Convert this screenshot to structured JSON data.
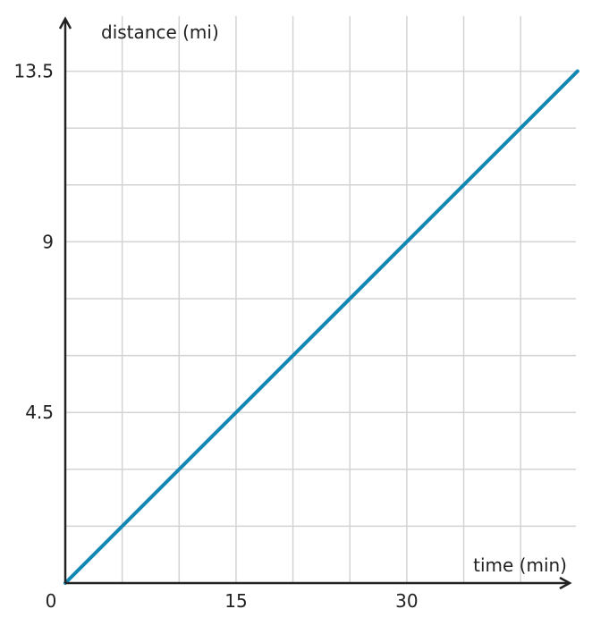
{
  "chart_data": {
    "type": "line",
    "xlabel": "time (min)",
    "ylabel": "distance (mi)",
    "xlim": [
      0,
      45
    ],
    "ylim": [
      0,
      13.5
    ],
    "x_ticks": [
      {
        "value": 0,
        "label": "0"
      },
      {
        "value": 15,
        "label": "15"
      },
      {
        "value": 30,
        "label": "30"
      }
    ],
    "y_ticks": [
      {
        "value": 4.5,
        "label": "4.5"
      },
      {
        "value": 9,
        "label": "9"
      },
      {
        "value": 13.5,
        "label": "13.5"
      }
    ],
    "x_grid_step": 5,
    "y_grid_step": 1.5,
    "grid": true,
    "series": [
      {
        "x": [
          0,
          45
        ],
        "y": [
          0,
          13.5
        ],
        "color": "#1287b4"
      }
    ]
  }
}
